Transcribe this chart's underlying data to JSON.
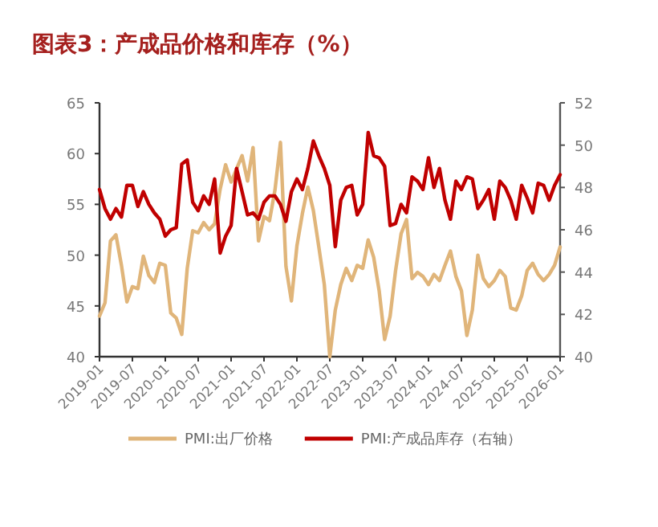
{
  "chart_data": {
    "type": "line",
    "title": "图表3：产成品价格和库存（%）",
    "x": [
      "2019-01",
      "2019-02",
      "2019-03",
      "2019-04",
      "2019-05",
      "2019-06",
      "2019-07",
      "2019-08",
      "2019-09",
      "2019-10",
      "2019-11",
      "2019-12",
      "2020-01",
      "2020-02",
      "2020-03",
      "2020-04",
      "2020-05",
      "2020-06",
      "2020-07",
      "2020-08",
      "2020-09",
      "2020-10",
      "2020-11",
      "2020-12",
      "2021-01",
      "2021-02",
      "2021-03",
      "2021-04",
      "2021-05",
      "2021-06",
      "2021-07",
      "2021-08",
      "2021-09",
      "2021-10",
      "2021-11",
      "2021-12",
      "2022-01",
      "2022-02",
      "2022-03",
      "2022-04",
      "2022-05",
      "2022-06",
      "2022-07",
      "2022-08",
      "2022-09",
      "2022-10",
      "2022-11",
      "2022-12",
      "2023-01",
      "2023-02",
      "2023-03",
      "2023-04",
      "2023-05",
      "2023-06",
      "2023-07",
      "2023-08",
      "2023-09",
      "2023-10",
      "2023-11",
      "2023-12",
      "2024-01",
      "2024-02",
      "2024-03",
      "2024-04",
      "2024-05",
      "2024-06",
      "2024-07",
      "2024-08",
      "2024-09",
      "2024-10",
      "2024-11",
      "2024-12",
      "2025-01",
      "2025-02",
      "2025-03",
      "2025-04",
      "2025-05",
      "2025-06",
      "2025-07",
      "2025-08",
      "2025-09",
      "2025-10",
      "2025-11",
      "2025-12",
      "2026-01"
    ],
    "series": [
      {
        "name": "PMI:出厂价格",
        "color": "#e0b57a",
        "values": [
          44.0,
          45.3,
          51.4,
          52.0,
          49.0,
          45.4,
          46.9,
          46.7,
          49.9,
          48.0,
          47.3,
          49.2,
          49.0,
          44.3,
          43.8,
          42.2,
          48.7,
          52.4,
          52.2,
          53.2,
          52.5,
          53.1,
          56.5,
          58.9,
          57.2,
          58.5,
          59.8,
          57.3,
          60.6,
          51.4,
          53.8,
          53.4,
          56.4,
          61.1,
          48.9,
          45.5,
          50.9,
          54.1,
          56.7,
          54.4,
          50.8,
          47.1,
          40.0,
          44.6,
          47.1,
          48.7,
          47.5,
          49.0,
          48.7,
          51.5,
          49.8,
          46.5,
          41.7,
          44.0,
          48.5,
          52.1,
          53.5,
          47.7,
          48.3,
          47.9,
          47.1,
          48.1,
          47.5,
          49.0,
          50.4,
          47.9,
          46.5,
          42.1,
          44.6,
          50.0,
          47.7,
          46.9,
          47.5,
          48.5,
          47.9,
          44.8,
          44.6,
          46.0,
          48.5,
          49.2,
          48.1,
          47.5,
          48.1,
          49.0,
          50.8
        ]
      },
      {
        "name": "PMI:产成品库存（右轴）",
        "color": "#c00000",
        "axis": "y2",
        "values": [
          47.9,
          47.0,
          46.5,
          47.0,
          46.6,
          48.1,
          48.1,
          47.1,
          47.8,
          47.2,
          46.8,
          46.5,
          45.7,
          46.0,
          46.1,
          49.1,
          49.3,
          47.3,
          46.9,
          47.6,
          47.2,
          48.4,
          44.9,
          45.7,
          46.2,
          48.9,
          47.8,
          46.7,
          46.8,
          46.5,
          47.3,
          47.6,
          47.6,
          47.2,
          46.4,
          47.8,
          48.4,
          47.9,
          48.9,
          50.2,
          49.5,
          48.9,
          48.1,
          45.2,
          47.4,
          48.0,
          48.1,
          46.7,
          47.2,
          50.6,
          49.5,
          49.4,
          49.0,
          46.2,
          46.3,
          47.2,
          46.8,
          48.5,
          48.3,
          47.9,
          49.4,
          48.0,
          48.9,
          47.4,
          46.5,
          48.3,
          47.9,
          48.5,
          48.4,
          47.0,
          47.4,
          47.9,
          46.5,
          48.3,
          48.0,
          47.4,
          46.5,
          48.1,
          47.5,
          46.8,
          48.2,
          48.1,
          47.4,
          48.1,
          48.6
        ]
      }
    ],
    "xlim": [
      "2019-01",
      "2026-01"
    ],
    "xticks": [
      "2019-01",
      "2019-07",
      "2020-01",
      "2020-07",
      "2021-01",
      "2021-07",
      "2022-01",
      "2022-07",
      "2023-01",
      "2023-07",
      "2024-01",
      "2024-07",
      "2025-01",
      "2025-07",
      "2026-01"
    ],
    "ylim": [
      40,
      65
    ],
    "yticks": [
      40,
      45,
      50,
      55,
      60,
      65
    ],
    "y2lim": [
      40,
      52
    ],
    "y2ticks": [
      40,
      42,
      44,
      46,
      48,
      50,
      52
    ],
    "grid": false,
    "legend": "bottom",
    "marker": "none",
    "line_style": "solid"
  }
}
